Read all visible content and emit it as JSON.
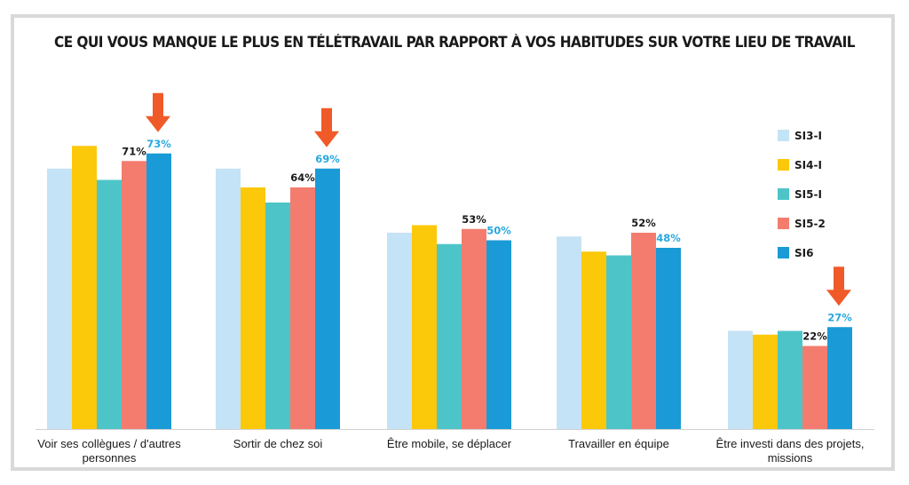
{
  "chart_data": {
    "type": "bar",
    "title": "CE QUI VOUS MANQUE LE PLUS EN TÉLÉTRAVAIL PAR RAPPORT À VOS HABITUDES SUR VOTRE LIEU DE TRAVAIL",
    "categories": [
      [
        "Voir ses collègues / d'autres",
        "personnes"
      ],
      [
        "Sortir de chez soi"
      ],
      [
        "Être mobile, se déplacer"
      ],
      [
        "Travailler en équipe"
      ],
      [
        "Être investi dans des projets,",
        "missions"
      ]
    ],
    "series": [
      {
        "name": "SI3-I",
        "color": "#c5e3f6",
        "values": [
          69,
          69,
          52,
          51,
          26
        ]
      },
      {
        "name": "SI4-I",
        "color": "#fcc80a",
        "values": [
          75,
          64,
          54,
          47,
          25
        ]
      },
      {
        "name": "SI5-I",
        "color": "#4dc5c8",
        "values": [
          66,
          60,
          49,
          46,
          26
        ]
      },
      {
        "name": "SI5-2",
        "color": "#f47c6e",
        "values": [
          71,
          64,
          53,
          52,
          22
        ]
      },
      {
        "name": "SI6",
        "color": "#1a9ad6",
        "values": [
          73,
          69,
          50,
          48,
          27
        ]
      }
    ],
    "value_labels": [
      {
        "category": 0,
        "series": 3,
        "text": "71%",
        "color": "#1a1a1a"
      },
      {
        "category": 0,
        "series": 4,
        "text": "73%",
        "color": "#29a8e0"
      },
      {
        "category": 1,
        "series": 3,
        "text": "64%",
        "color": "#1a1a1a"
      },
      {
        "category": 1,
        "series": 4,
        "text": "69%",
        "color": "#29a8e0"
      },
      {
        "category": 2,
        "series": 3,
        "text": "53%",
        "color": "#1a1a1a"
      },
      {
        "category": 2,
        "series": 4,
        "text": "50%",
        "color": "#29a8e0"
      },
      {
        "category": 3,
        "series": 3,
        "text": "52%",
        "color": "#1a1a1a"
      },
      {
        "category": 3,
        "series": 4,
        "text": "48%",
        "color": "#29a8e0"
      },
      {
        "category": 4,
        "series": 3,
        "text": "22%",
        "color": "#1a1a1a"
      },
      {
        "category": 4,
        "series": 4,
        "text": "27%",
        "color": "#29a8e0"
      }
    ],
    "highlight_arrows": [
      0,
      1,
      4
    ],
    "arrow_color": "#f05a28",
    "ylim": [
      0,
      80
    ],
    "grid": false,
    "legend_position": "right"
  }
}
